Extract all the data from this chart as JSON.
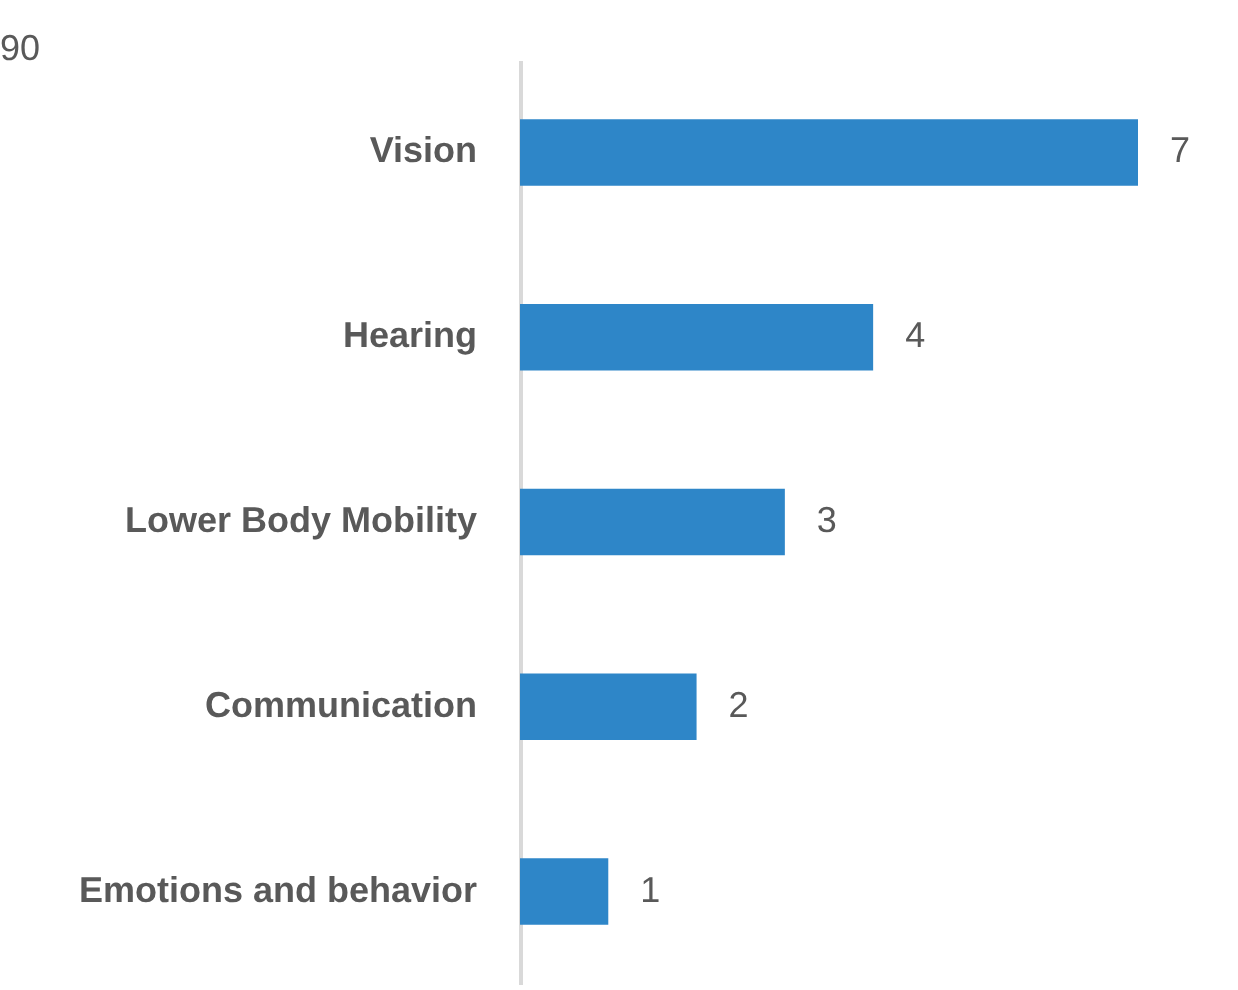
{
  "chart_data": {
    "type": "bar",
    "orientation": "horizontal",
    "data_labels": true,
    "categories": [
      "Vision",
      "Hearing",
      "Lower Body Mobility",
      "Communication",
      "Emotions and behavior"
    ],
    "values": [
      7,
      4,
      3,
      2,
      1
    ],
    "color": "#2e86c8",
    "annotations": [
      "90"
    ]
  }
}
